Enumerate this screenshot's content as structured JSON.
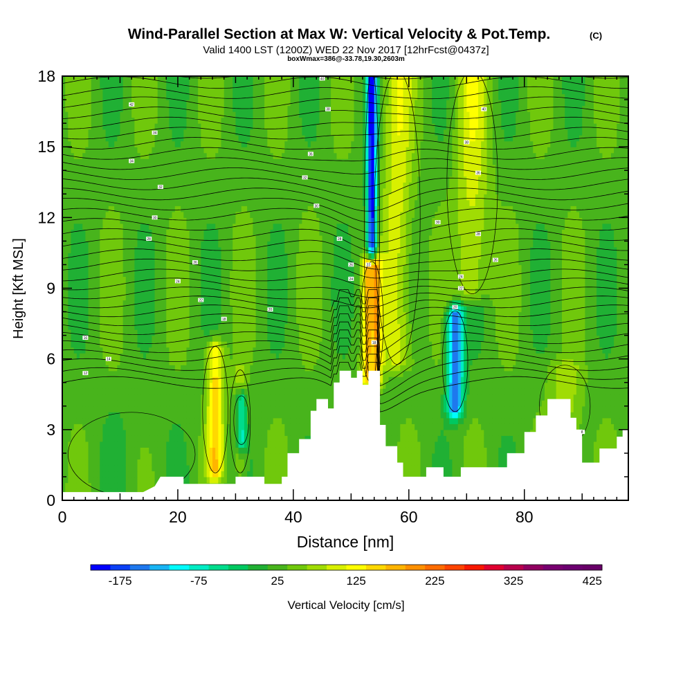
{
  "header": {
    "title": "Wind-Parallel Section at Max W: Vertical Velocity & Pot.Temp.",
    "title_mark": "(C)",
    "subtitle_line1": "Valid 1400 LST (1200Z) WED 22 Nov 2017 [12hrFcst@0437z]",
    "subtitle_line2": "boxWmax=386@-33.78,19.30,2603m"
  },
  "chart_data": {
    "type": "heatmap",
    "title": "Wind-Parallel Section at Max W: Vertical Velocity & Pot.Temp.",
    "xlabel": "Distance [nm]",
    "ylabel": "Height [Kft MSL]",
    "xlim": [
      0,
      98
    ],
    "ylim": [
      0,
      18
    ],
    "x_ticks": [
      0,
      20,
      40,
      60,
      80
    ],
    "y_ticks": [
      0,
      3,
      6,
      9,
      12,
      15,
      18
    ],
    "grid": false,
    "colorbar": {
      "label": "Vertical Velocity [cm/s]",
      "placement": "bottom",
      "tick_labels": [
        "-175",
        "-75",
        "25",
        "125",
        "225",
        "325",
        "425"
      ],
      "tick_values": [
        -175,
        -75,
        25,
        125,
        225,
        325,
        425
      ],
      "min": -200,
      "max": 450,
      "step": 25,
      "colors": [
        "#0000ff",
        "#0b40f6",
        "#1e78ee",
        "#18b4f4",
        "#00fcfc",
        "#00ecc4",
        "#00dc8c",
        "#00c860",
        "#20b034",
        "#48b41c",
        "#70c80c",
        "#a0dc04",
        "#d8f000",
        "#ffff00",
        "#ffd800",
        "#ffb400",
        "#ff9000",
        "#ff6c00",
        "#ff4400",
        "#f81800",
        "#e00030",
        "#b8004c",
        "#900060",
        "#780070",
        "#6c0070",
        "#680068"
      ]
    },
    "terrain": [
      [
        0,
        0.35
      ],
      [
        14,
        0.35
      ],
      [
        16,
        0.6
      ],
      [
        17,
        1.0
      ],
      [
        21,
        1.0
      ],
      [
        21,
        0.7
      ],
      [
        30,
        0.7
      ],
      [
        30,
        1.0
      ],
      [
        35,
        1.0
      ],
      [
        35,
        0.7
      ],
      [
        38,
        0.7
      ],
      [
        38,
        1.0
      ],
      [
        39,
        1.0
      ],
      [
        39,
        2.0
      ],
      [
        41,
        2.0
      ],
      [
        41,
        2.6
      ],
      [
        43,
        2.6
      ],
      [
        43,
        3.8
      ],
      [
        44,
        3.8
      ],
      [
        44,
        4.3
      ],
      [
        46,
        4.3
      ],
      [
        46,
        3.9
      ],
      [
        47,
        3.9
      ],
      [
        47,
        5.0
      ],
      [
        48,
        5.0
      ],
      [
        48,
        5.5
      ],
      [
        50,
        5.5
      ],
      [
        50,
        5.2
      ],
      [
        51,
        5.2
      ],
      [
        51,
        5.5
      ],
      [
        52,
        5.5
      ],
      [
        52,
        4.9
      ],
      [
        53,
        4.9
      ],
      [
        53,
        5.5
      ],
      [
        55,
        5.5
      ],
      [
        55,
        3.2
      ],
      [
        56,
        3.2
      ],
      [
        56,
        2.3
      ],
      [
        58,
        2.3
      ],
      [
        58,
        1.6
      ],
      [
        59,
        1.6
      ],
      [
        59,
        1.0
      ],
      [
        63,
        1.0
      ],
      [
        63,
        1.4
      ],
      [
        66,
        1.4
      ],
      [
        66,
        1.0
      ],
      [
        69,
        1.0
      ],
      [
        69,
        1.4
      ],
      [
        77,
        1.4
      ],
      [
        77,
        2.0
      ],
      [
        80,
        2.0
      ],
      [
        80,
        2.9
      ],
      [
        82,
        2.9
      ],
      [
        82,
        3.6
      ],
      [
        84,
        3.6
      ],
      [
        84,
        4.3
      ],
      [
        88,
        4.3
      ],
      [
        88,
        3.5
      ],
      [
        89,
        3.5
      ],
      [
        89,
        3.0
      ],
      [
        90,
        3.0
      ],
      [
        90,
        1.6
      ],
      [
        93,
        1.6
      ],
      [
        93,
        2.2
      ],
      [
        96,
        2.2
      ],
      [
        96,
        2.7
      ],
      [
        97,
        2.7
      ],
      [
        97,
        3.0
      ],
      [
        98,
        3.0
      ]
    ],
    "vertical_velocity_features": [
      {
        "x": 53.6,
        "y_bottom": 5.0,
        "y_top": 18.0,
        "half_width_nm": 0.6,
        "peak_cm_s": -200
      },
      {
        "x": 53.6,
        "y_bottom": 5.2,
        "y_top": 9.9,
        "half_width_nm": 0.9,
        "peak_cm_s": 386
      },
      {
        "x": 26.5,
        "y_bottom": 1.4,
        "y_top": 6.3,
        "half_width_nm": 1.0,
        "peak_cm_s": 160
      },
      {
        "x": 30.8,
        "y_bottom": 1.4,
        "y_top": 5.3,
        "half_width_nm": 0.8,
        "peak_cm_s": 90
      },
      {
        "x": 31.0,
        "y_bottom": 2.6,
        "y_top": 4.2,
        "half_width_nm": 0.6,
        "peak_cm_s": -90
      },
      {
        "x": 68.0,
        "y_bottom": 4.0,
        "y_top": 7.8,
        "half_width_nm": 1.0,
        "peak_cm_s": -150
      },
      {
        "x": 58.0,
        "y_bottom": 6.0,
        "y_top": 18.0,
        "half_width_nm": 1.8,
        "peak_cm_s": 115
      },
      {
        "x": 71.0,
        "y_bottom": 9.0,
        "y_top": 18.0,
        "half_width_nm": 2.0,
        "peak_cm_s": 110
      },
      {
        "x": 12.0,
        "y_bottom": 0.4,
        "y_top": 3.5,
        "half_width_nm": 5.0,
        "peak_cm_s": 30
      },
      {
        "x": 87.0,
        "y_bottom": 2.5,
        "y_top": 5.5,
        "half_width_nm": 2.0,
        "peak_cm_s": 90
      }
    ],
    "pot_temp_contour_labels": [
      {
        "x": 12,
        "y": 16.8,
        "text": "42"
      },
      {
        "x": 16,
        "y": 15.6,
        "text": "34"
      },
      {
        "x": 12,
        "y": 14.4,
        "text": "34"
      },
      {
        "x": 17,
        "y": 13.3,
        "text": "32"
      },
      {
        "x": 16,
        "y": 12.0,
        "text": "30"
      },
      {
        "x": 15,
        "y": 11.1,
        "text": "28"
      },
      {
        "x": 23,
        "y": 10.1,
        "text": "26"
      },
      {
        "x": 20,
        "y": 9.3,
        "text": "24"
      },
      {
        "x": 24,
        "y": 8.5,
        "text": "22"
      },
      {
        "x": 28,
        "y": 7.7,
        "text": "18"
      },
      {
        "x": 36,
        "y": 8.1,
        "text": "20"
      },
      {
        "x": 4,
        "y": 6.9,
        "text": "16"
      },
      {
        "x": 8,
        "y": 6.0,
        "text": "14"
      },
      {
        "x": 4,
        "y": 5.4,
        "text": "12"
      },
      {
        "x": 45,
        "y": 17.9,
        "text": "40"
      },
      {
        "x": 46,
        "y": 16.6,
        "text": "38"
      },
      {
        "x": 43,
        "y": 14.7,
        "text": "36"
      },
      {
        "x": 42,
        "y": 13.7,
        "text": "32"
      },
      {
        "x": 44,
        "y": 12.5,
        "text": "30"
      },
      {
        "x": 48,
        "y": 11.1,
        "text": "28"
      },
      {
        "x": 50,
        "y": 10.0,
        "text": "26"
      },
      {
        "x": 50,
        "y": 9.4,
        "text": "24"
      },
      {
        "x": 53,
        "y": 10.0,
        "text": "22"
      },
      {
        "x": 54,
        "y": 6.7,
        "text": "18"
      },
      {
        "x": 73,
        "y": 16.6,
        "text": "40"
      },
      {
        "x": 70,
        "y": 15.2,
        "text": "38"
      },
      {
        "x": 72,
        "y": 13.9,
        "text": "36"
      },
      {
        "x": 65,
        "y": 11.8,
        "text": "30"
      },
      {
        "x": 72,
        "y": 11.3,
        "text": "28"
      },
      {
        "x": 75,
        "y": 10.2,
        "text": "26"
      },
      {
        "x": 69,
        "y": 9.5,
        "text": "24"
      },
      {
        "x": 69,
        "y": 9.0,
        "text": "22"
      },
      {
        "x": 68,
        "y": 8.2,
        "text": "20"
      },
      {
        "x": 90,
        "y": 2.9,
        "text": "8"
      }
    ]
  }
}
